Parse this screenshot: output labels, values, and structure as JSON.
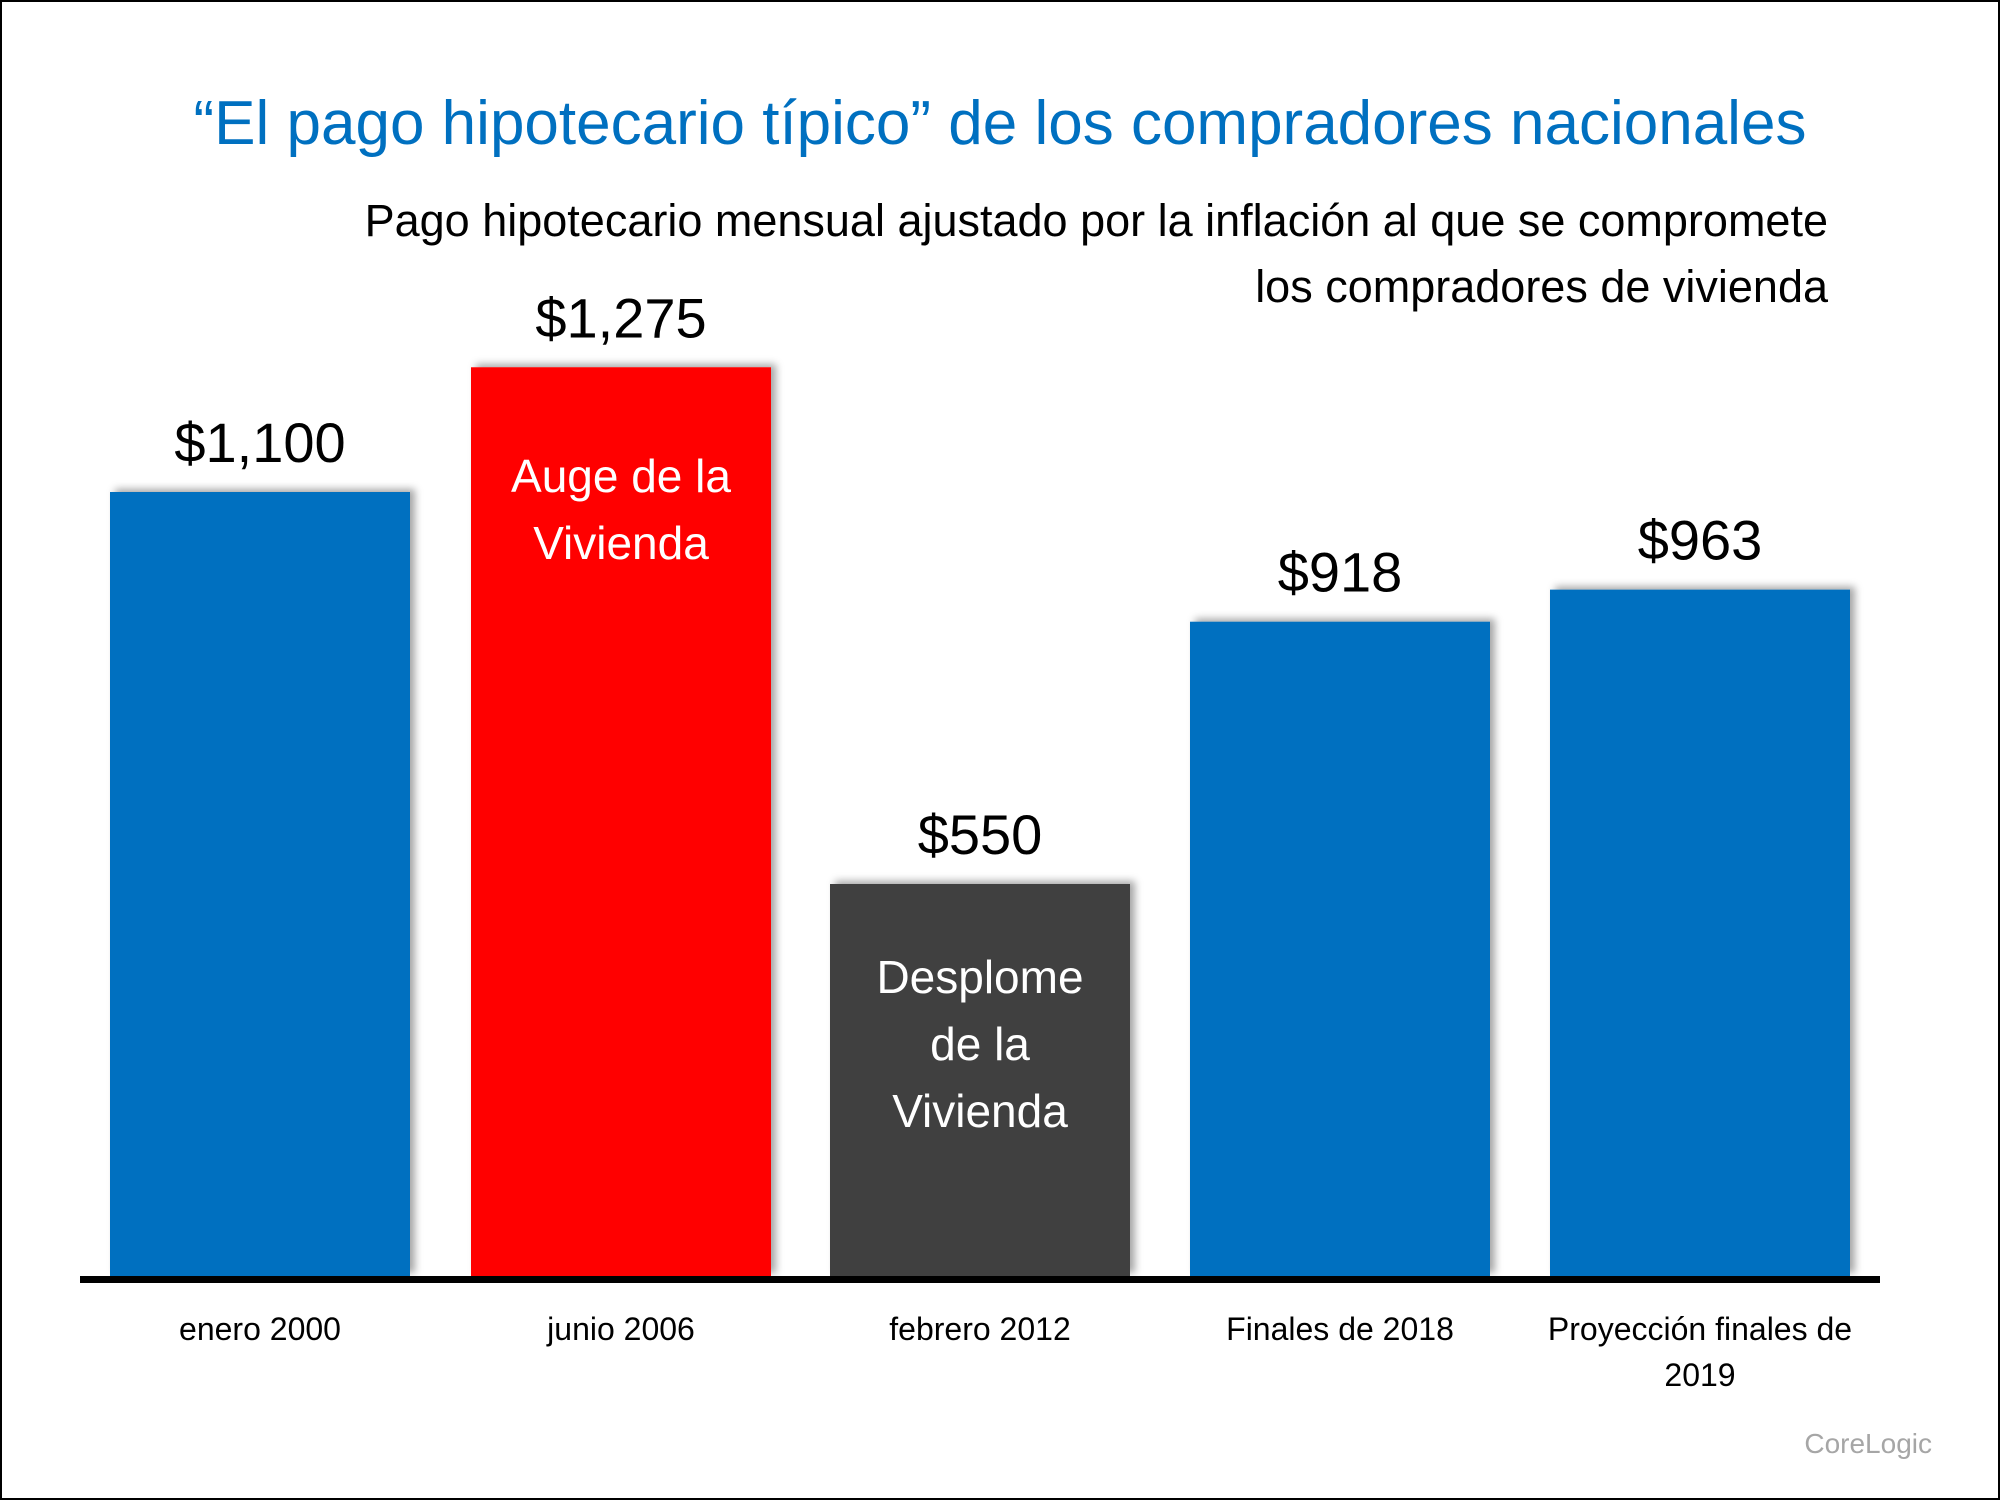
{
  "title": "“El pago hipotecario típico” de los compradores nacionales",
  "subtitle": [
    "Pago hipotecario mensual ajustado por la inflación al que se compromete",
    "los compradores de vivienda"
  ],
  "source": "CoreLogic",
  "chart_data": {
    "type": "bar",
    "title": "“El pago hipotecario típico” de los compradores nacionales",
    "categories": [
      [
        "enero 2000"
      ],
      [
        "junio 2006"
      ],
      [
        "febrero 2012"
      ],
      [
        "Finales de 2018"
      ],
      [
        "Proyección finales de",
        "2019"
      ]
    ],
    "values": [
      1100,
      1275,
      550,
      918,
      963
    ],
    "value_labels": [
      "$1,100",
      "$1,275",
      "$550",
      "$918",
      "$963"
    ],
    "bar_annotations": [
      [],
      [
        "Auge de la",
        "Vivienda"
      ],
      [
        "Desplome",
        "de la",
        "Vivienda"
      ],
      [],
      []
    ],
    "colors": [
      "#0070C0",
      "#FF0000",
      "#404040",
      "#0070C0",
      "#0070C0"
    ],
    "ylim": [
      0,
      1400
    ],
    "grid": false,
    "xlabel": "",
    "ylabel": ""
  }
}
